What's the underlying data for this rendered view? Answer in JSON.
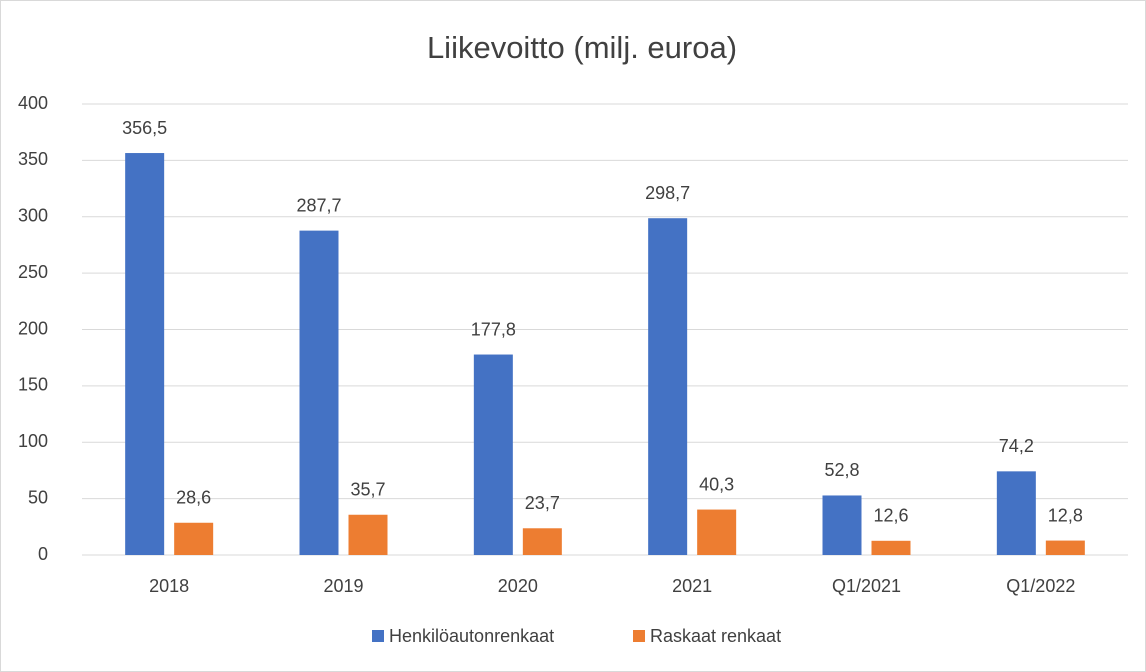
{
  "chart_data": {
    "type": "bar",
    "title": "Liikevoitto (milj. euroa)",
    "categories": [
      "2018",
      "2019",
      "2020",
      "2021",
      "Q1/2021",
      "Q1/2022"
    ],
    "series": [
      {
        "name": "Henkilöautonrenkaat",
        "color": "#4472c4",
        "values": [
          356.5,
          287.7,
          177.8,
          298.7,
          52.8,
          74.2
        ],
        "value_labels": [
          "356,5",
          "287,7",
          "177,8",
          "298,7",
          "52,8",
          "74,2"
        ]
      },
      {
        "name": "Raskaat renkaat",
        "color": "#ed7d31",
        "values": [
          28.6,
          35.7,
          23.7,
          40.3,
          12.6,
          12.8
        ],
        "value_labels": [
          "28,6",
          "35,7",
          "23,7",
          "40,3",
          "12,6",
          "12,8"
        ]
      }
    ],
    "ylim": [
      0,
      400
    ],
    "yticks": [
      0,
      50,
      100,
      150,
      200,
      250,
      300,
      350,
      400
    ],
    "grid": true,
    "legend": "bottom"
  }
}
